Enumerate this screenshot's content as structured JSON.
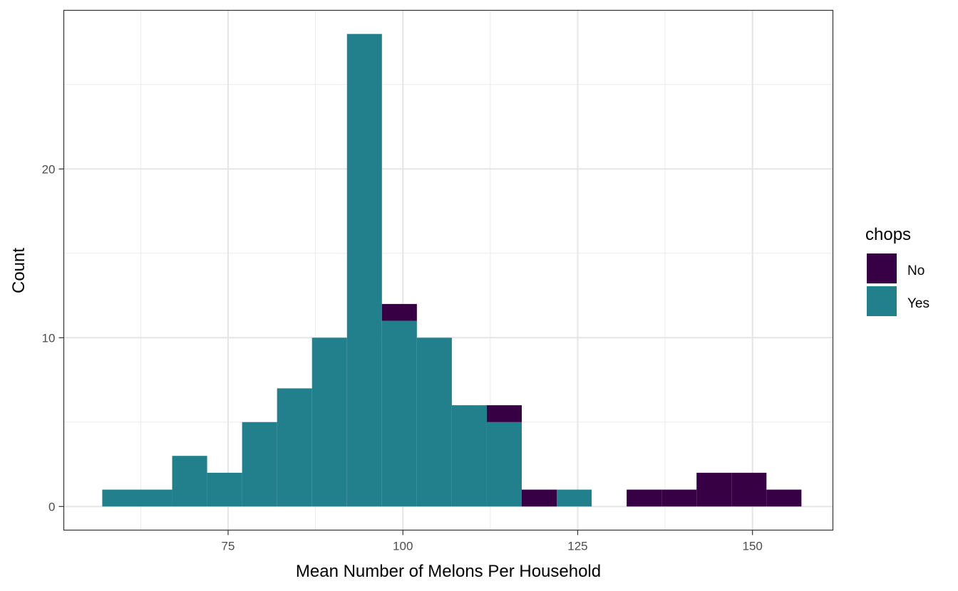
{
  "chart_data": {
    "type": "bar",
    "subtype": "stacked-histogram",
    "xlabel": "Mean Number of Melons Per Household",
    "ylabel": "Count",
    "legend_title": "chops",
    "legend_position": "right",
    "grid": true,
    "xlim": [
      51.5,
      161.5
    ],
    "ylim": [
      -1.4,
      29.4
    ],
    "x_ticks": [
      75,
      100,
      125,
      150
    ],
    "x_tick_labels": [
      "75",
      "100",
      "125",
      "150"
    ],
    "y_ticks": [
      0,
      10,
      20
    ],
    "y_tick_labels": [
      "0",
      "10",
      "20"
    ],
    "bin_width": 5,
    "bin_starts": [
      57,
      62,
      67,
      72,
      77,
      82,
      87,
      92,
      97,
      102,
      107,
      112,
      117,
      122,
      127,
      132,
      137,
      142,
      147,
      152
    ],
    "series": [
      {
        "name": "Yes",
        "color": "#21808b",
        "values": [
          1,
          1,
          3,
          2,
          5,
          7,
          10,
          28,
          11,
          10,
          6,
          5,
          0,
          1,
          0,
          0,
          0,
          0,
          0,
          0
        ]
      },
      {
        "name": "No",
        "color": "#370045",
        "values": [
          0,
          0,
          0,
          0,
          0,
          0,
          0,
          0,
          1,
          0,
          0,
          1,
          1,
          0,
          0,
          1,
          1,
          2,
          2,
          1
        ]
      }
    ]
  }
}
